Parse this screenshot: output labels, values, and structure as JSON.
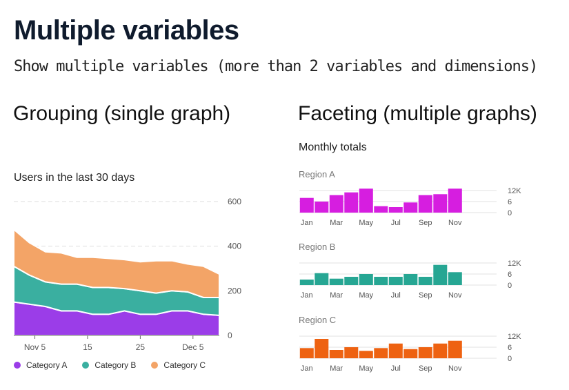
{
  "header": {
    "title": "Multiple variables",
    "subtitle": "Show multiple variables (more than 2 variables and dimensions)"
  },
  "sections": {
    "grouping": "Grouping (single graph)",
    "faceting": "Faceting (multiple graphs)"
  },
  "colors": {
    "category_a": "#9b3de8",
    "category_b": "#3aafa0",
    "category_c": "#f3a467",
    "region_a": "#d61ee0",
    "region_b": "#26a693",
    "region_c": "#ee6211",
    "grid": "#dddddd",
    "tick": "#555555"
  },
  "chart_data": [
    {
      "type": "area",
      "stacked": true,
      "title": "Users in the last 30 days",
      "x_tick_labels": [
        "Nov 5",
        "15",
        "25",
        "Dec 5"
      ],
      "x_tick_days": [
        4,
        14,
        24,
        34
      ],
      "x_range": [
        0,
        39
      ],
      "y_ticks": [
        0,
        200,
        400,
        600
      ],
      "ylim": [
        0,
        600
      ],
      "x": [
        0,
        3,
        6,
        9,
        12,
        15,
        18,
        21,
        24,
        27,
        30,
        33,
        36,
        39
      ],
      "series": [
        {
          "name": "Category A",
          "values": [
            150,
            140,
            130,
            110,
            110,
            95,
            95,
            110,
            95,
            95,
            110,
            110,
            95,
            90
          ]
        },
        {
          "name": "Category B",
          "values": [
            160,
            130,
            110,
            120,
            120,
            120,
            120,
            100,
            105,
            95,
            90,
            85,
            75,
            80
          ]
        },
        {
          "name": "Category C",
          "values": [
            165,
            145,
            135,
            140,
            120,
            135,
            130,
            130,
            130,
            145,
            135,
            125,
            140,
            105
          ]
        }
      ],
      "legend_position": "bottom"
    },
    {
      "type": "bar",
      "title": "Monthly totals",
      "panels": [
        {
          "name": "Region A",
          "values": [
            8,
            6,
            9.5,
            11,
            13,
            3.5,
            3,
            5.5,
            9.5,
            10,
            13
          ]
        },
        {
          "name": "Region B",
          "values": [
            3,
            6.5,
            3.5,
            4.5,
            6,
            4.5,
            4.5,
            6,
            4.5,
            11,
            7
          ]
        },
        {
          "name": "Region C",
          "values": [
            5.5,
            10.5,
            4.5,
            6,
            4,
            5.5,
            8,
            5,
            6,
            8,
            9.5
          ]
        }
      ],
      "x_tick_labels": [
        "Jan",
        "Mar",
        "May",
        "Jul",
        "Sep",
        "Nov"
      ],
      "y_ticks": [
        0,
        6,
        12
      ],
      "y_tick_labels": [
        "0",
        "6",
        "12K"
      ],
      "ylim": [
        0,
        12
      ]
    }
  ]
}
